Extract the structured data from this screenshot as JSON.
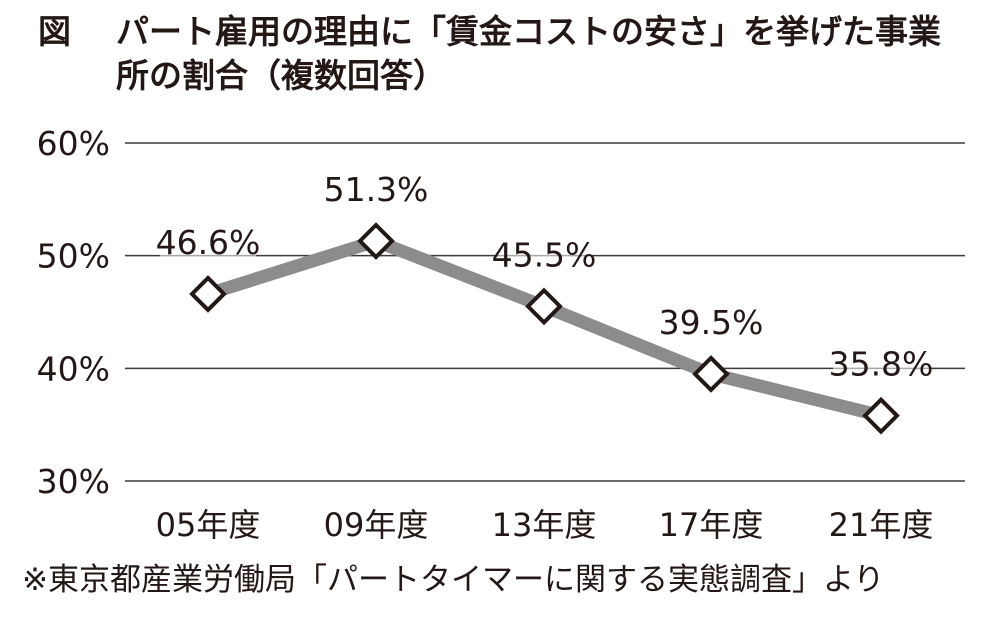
{
  "title": {
    "fig_label": "図",
    "line1": "パート雇用の理由に「賃金コストの安さ」を挙げた事業",
    "line2": "所の割合（複数回答）"
  },
  "chart_data": {
    "type": "line",
    "categories": [
      "05年度",
      "09年度",
      "13年度",
      "17年度",
      "21年度"
    ],
    "values": [
      46.6,
      51.3,
      45.5,
      39.5,
      35.8
    ],
    "data_labels": [
      "46.6%",
      "51.3%",
      "45.5%",
      "39.5%",
      "35.8%"
    ],
    "y_ticks": [
      60,
      50,
      40,
      30
    ],
    "y_tick_labels": [
      "60%",
      "50%",
      "40%",
      "30%"
    ],
    "ylim": [
      30,
      60
    ],
    "grid": true,
    "line_color": "#8c8c8c",
    "marker": "diamond-open",
    "marker_color": "#231815"
  },
  "footnote": "※東京都産業労働局「パートタイマーに関する実態調査」より"
}
